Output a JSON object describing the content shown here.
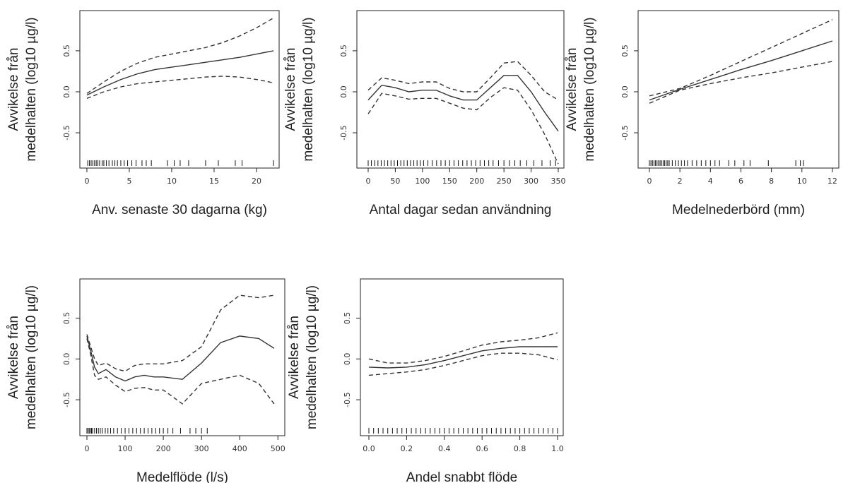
{
  "chart_data": [
    {
      "type": "line",
      "xlabel": "Anv. senaste 30 dagarna (kg)",
      "ylabel": [
        "Avvikelse från",
        "medelhalten (log10 µg/l)"
      ],
      "xlim": [
        -0.83,
        22.67
      ],
      "ylim": [
        -0.93,
        0.99
      ],
      "xticks": [
        0,
        5,
        10,
        15,
        20
      ],
      "yticks": [
        -0.5,
        {
          "value": 0,
          "label": "0.0"
        },
        0.5
      ],
      "x": [
        0,
        2,
        4,
        6,
        8,
        10,
        12,
        14,
        16,
        18,
        20,
        22
      ],
      "series": [
        {
          "color": "#333333",
          "style": "solid",
          "values": [
            -0.04,
            0.06,
            0.15,
            0.22,
            0.27,
            0.3,
            0.33,
            0.36,
            0.39,
            0.42,
            0.46,
            0.5
          ]
        },
        {
          "color": "#333333",
          "style": "dashed",
          "values": [
            -0.02,
            0.12,
            0.25,
            0.35,
            0.42,
            0.46,
            0.5,
            0.54,
            0.6,
            0.68,
            0.78,
            0.9
          ]
        },
        {
          "color": "#333333",
          "style": "dashed",
          "values": [
            -0.08,
            0.0,
            0.06,
            0.1,
            0.12,
            0.14,
            0.16,
            0.18,
            0.19,
            0.18,
            0.15,
            0.11
          ]
        }
      ],
      "rug": [
        0.1,
        0.3,
        0.5,
        0.7,
        0.9,
        1.1,
        1.3,
        1.5,
        1.8,
        2,
        2.3,
        2.6,
        3,
        3.3,
        3.6,
        4,
        4.4,
        4.8,
        5.3,
        5.8,
        6.5,
        7,
        7.6,
        9.5,
        10.3,
        11,
        12,
        14,
        15.5,
        17.5,
        18.3,
        22
      ]
    },
    {
      "type": "line",
      "xlabel": "Antal dagar sedan användning",
      "ylabel": [
        "Avvikelse från",
        "medelhalten (log10 µg/l)"
      ],
      "xlim": [
        -20.8,
        360.4
      ],
      "ylim": [
        -0.93,
        0.99
      ],
      "xticks": [
        0,
        50,
        100,
        150,
        200,
        250,
        300,
        350
      ],
      "yticks": [
        -0.5,
        {
          "value": 0,
          "label": "0.0"
        },
        0.5
      ],
      "x": [
        0,
        25,
        50,
        75,
        100,
        125,
        150,
        175,
        200,
        225,
        250,
        275,
        300,
        325,
        350
      ],
      "series": [
        {
          "color": "#333333",
          "style": "solid",
          "values": [
            -0.1,
            0.08,
            0.05,
            0.0,
            0.02,
            0.02,
            -0.05,
            -0.1,
            -0.1,
            0.05,
            0.2,
            0.2,
            0.0,
            -0.25,
            -0.48
          ]
        },
        {
          "color": "#333333",
          "style": "dashed",
          "values": [
            0.02,
            0.17,
            0.14,
            0.1,
            0.12,
            0.12,
            0.04,
            0.0,
            0.0,
            0.17,
            0.35,
            0.37,
            0.2,
            0.0,
            -0.1
          ]
        },
        {
          "color": "#333333",
          "style": "dashed",
          "values": [
            -0.27,
            -0.02,
            -0.05,
            -0.09,
            -0.08,
            -0.08,
            -0.14,
            -0.2,
            -0.22,
            -0.07,
            0.05,
            0.02,
            -0.22,
            -0.52,
            -0.88
          ]
        }
      ],
      "rug": [
        0,
        6,
        12,
        18,
        24,
        30,
        36,
        42,
        48,
        54,
        60,
        66,
        72,
        78,
        84,
        90,
        96,
        102,
        110,
        118,
        126,
        134,
        142,
        150,
        158,
        166,
        174,
        182,
        190,
        198,
        206,
        214,
        222,
        230,
        240,
        250,
        260,
        270,
        280,
        292,
        305,
        320,
        335,
        345
      ]
    },
    {
      "type": "line",
      "xlabel": "Medelnederbörd (mm)",
      "ylabel": [
        "Avvikelse från",
        "medelhalten (log10 µg/l)"
      ],
      "xlim": [
        -0.74,
        12.42
      ],
      "ylim": [
        -0.93,
        0.99
      ],
      "xticks": [
        0,
        2,
        4,
        6,
        8,
        10,
        12
      ],
      "yticks": [
        -0.5,
        {
          "value": 0,
          "label": "0.0"
        },
        0.5
      ],
      "x": [
        0,
        2,
        4,
        6,
        8,
        10,
        12
      ],
      "series": [
        {
          "color": "#333333",
          "style": "solid",
          "values": [
            -0.1,
            0.03,
            0.15,
            0.27,
            0.38,
            0.5,
            0.62
          ]
        },
        {
          "color": "#333333",
          "style": "dashed",
          "values": [
            -0.05,
            0.04,
            0.2,
            0.37,
            0.54,
            0.71,
            0.88
          ]
        },
        {
          "color": "#333333",
          "style": "dashed",
          "values": [
            -0.14,
            0.02,
            0.1,
            0.17,
            0.23,
            0.3,
            0.37
          ]
        }
      ],
      "rug": [
        0,
        0.1,
        0.2,
        0.3,
        0.4,
        0.5,
        0.6,
        0.7,
        0.8,
        0.9,
        1,
        1.1,
        1.2,
        1.3,
        1.5,
        1.7,
        1.9,
        2.1,
        2.3,
        2.5,
        2.8,
        3.1,
        3.4,
        3.7,
        4,
        4.3,
        4.6,
        5.2,
        5.6,
        6.2,
        6.6,
        7.8,
        9.6,
        9.9,
        10.1
      ]
    },
    {
      "type": "line",
      "xlabel": "Medelflöde (l/s)",
      "ylabel": [
        "Avvikelse från",
        "medelhalten (log10 µg/l)"
      ],
      "xlim": [
        -18.5,
        518
      ],
      "ylim": [
        -0.94,
        0.98
      ],
      "xticks": [
        0,
        100,
        200,
        300,
        400,
        500
      ],
      "yticks": [
        -0.5,
        {
          "value": 0,
          "label": "0.0"
        },
        0.5
      ],
      "x": [
        0,
        10,
        20,
        30,
        50,
        75,
        100,
        125,
        150,
        175,
        200,
        250,
        300,
        350,
        400,
        450,
        490
      ],
      "series": [
        {
          "color": "#333333",
          "style": "solid",
          "values": [
            0.28,
            0.1,
            -0.1,
            -0.18,
            -0.13,
            -0.22,
            -0.27,
            -0.22,
            -0.2,
            -0.22,
            -0.22,
            -0.25,
            -0.05,
            0.2,
            0.28,
            0.25,
            0.13
          ]
        },
        {
          "color": "#333333",
          "style": "dashed",
          "values": [
            0.3,
            0.15,
            0.0,
            -0.08,
            -0.05,
            -0.12,
            -0.15,
            -0.08,
            -0.06,
            -0.06,
            -0.06,
            -0.02,
            0.15,
            0.6,
            0.78,
            0.75,
            0.78
          ]
        },
        {
          "color": "#333333",
          "style": "dashed",
          "values": [
            0.25,
            0.05,
            -0.2,
            -0.25,
            -0.22,
            -0.32,
            -0.4,
            -0.36,
            -0.35,
            -0.38,
            -0.38,
            -0.55,
            -0.3,
            -0.25,
            -0.2,
            -0.3,
            -0.55
          ]
        }
      ],
      "rug": [
        0,
        3,
        6,
        9,
        12,
        15,
        20,
        25,
        30,
        35,
        40,
        48,
        55,
        62,
        70,
        80,
        90,
        100,
        110,
        120,
        130,
        140,
        150,
        160,
        170,
        180,
        190,
        200,
        212,
        225,
        245,
        270,
        285,
        300,
        315
      ]
    },
    {
      "type": "line",
      "xlabel": "Andel snabbt flöde",
      "ylabel": [
        "Avvikelse från",
        "medelhalten (log10 µg/l)"
      ],
      "xlim": [
        -0.045,
        1.03
      ],
      "ylim": [
        -0.94,
        0.98
      ],
      "xticks": [
        {
          "value": 0,
          "label": "0.0"
        },
        0.2,
        0.4,
        0.6,
        0.8,
        {
          "value": 1,
          "label": "1.0"
        }
      ],
      "yticks": [
        -0.5,
        {
          "value": 0,
          "label": "0.0"
        },
        0.5
      ],
      "x": [
        0,
        0.1,
        0.2,
        0.3,
        0.4,
        0.5,
        0.6,
        0.7,
        0.8,
        0.9,
        1.0
      ],
      "series": [
        {
          "color": "#333333",
          "style": "solid",
          "values": [
            -0.1,
            -0.11,
            -0.1,
            -0.07,
            -0.02,
            0.04,
            0.1,
            0.13,
            0.15,
            0.15,
            0.15
          ]
        },
        {
          "color": "#333333",
          "style": "dashed",
          "values": [
            0.0,
            -0.05,
            -0.05,
            -0.02,
            0.03,
            0.1,
            0.17,
            0.21,
            0.23,
            0.26,
            0.32
          ]
        },
        {
          "color": "#333333",
          "style": "dashed",
          "values": [
            -0.2,
            -0.18,
            -0.16,
            -0.13,
            -0.08,
            -0.02,
            0.04,
            0.07,
            0.07,
            0.05,
            -0.01
          ]
        }
      ],
      "rug": [
        0,
        0.025,
        0.05,
        0.075,
        0.1,
        0.125,
        0.15,
        0.175,
        0.2,
        0.225,
        0.25,
        0.275,
        0.3,
        0.325,
        0.35,
        0.375,
        0.4,
        0.425,
        0.45,
        0.475,
        0.5,
        0.525,
        0.55,
        0.575,
        0.6,
        0.625,
        0.65,
        0.675,
        0.7,
        0.725,
        0.75,
        0.775,
        0.8,
        0.825,
        0.85,
        0.875,
        0.9,
        0.925,
        0.95,
        0.975,
        1
      ]
    }
  ]
}
